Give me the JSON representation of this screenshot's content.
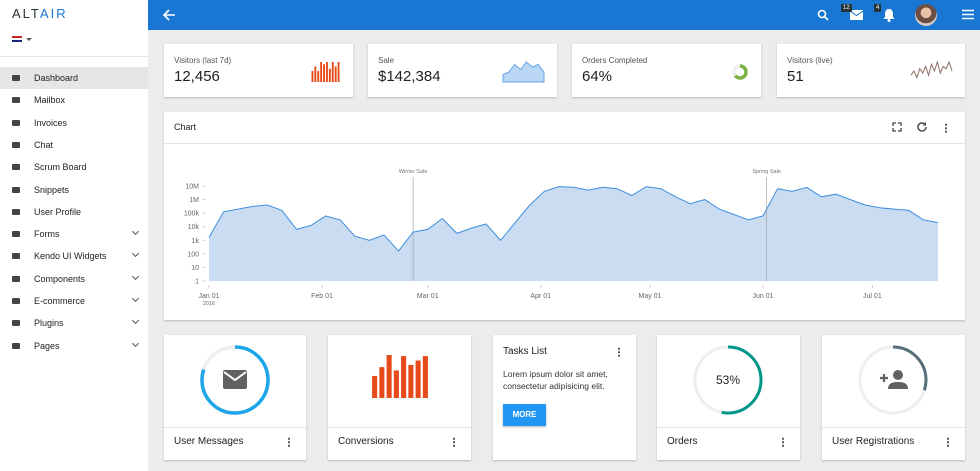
{
  "brand": {
    "part1": "ALT",
    "part2": "AIR"
  },
  "sidebar": {
    "items": [
      {
        "label": "Dashboard",
        "active": true
      },
      {
        "label": "Mailbox"
      },
      {
        "label": "Invoices"
      },
      {
        "label": "Chat"
      },
      {
        "label": "Scrum Board"
      },
      {
        "label": "Snippets"
      },
      {
        "label": "User Profile"
      },
      {
        "label": "Forms",
        "submenu": true
      },
      {
        "label": "Kendo UI Widgets",
        "submenu": true
      },
      {
        "label": "Components",
        "submenu": true
      },
      {
        "label": "E-commerce",
        "submenu": true
      },
      {
        "label": "Plugins",
        "submenu": true
      },
      {
        "label": "Pages",
        "submenu": true
      }
    ]
  },
  "header": {
    "mail_badge": "12",
    "notification_badge": "4"
  },
  "stats": [
    {
      "label": "Visitors (last 7d)",
      "value": "12,456",
      "spark": {
        "type": "bar",
        "color": "#e64a19",
        "values": [
          10,
          14,
          10,
          18,
          16,
          18,
          12,
          18,
          14,
          18
        ]
      }
    },
    {
      "label": "Sale",
      "value": "$142,384",
      "spark": {
        "type": "area",
        "color": "#64a6e8",
        "values": [
          3,
          4,
          7,
          5,
          8,
          6,
          7,
          4
        ]
      }
    },
    {
      "label": "Orders Completed",
      "value": "64%",
      "spark": {
        "type": "donut",
        "color": "#7cb342",
        "value": 64
      }
    },
    {
      "label": "Visitors (live)",
      "value": "51",
      "spark": {
        "type": "line",
        "color": "#8d6e63",
        "values": [
          3,
          5,
          2,
          6,
          4,
          7,
          3,
          8,
          5,
          9,
          4,
          7,
          6,
          9,
          5
        ]
      }
    }
  ],
  "main_chart": {
    "type": "area",
    "title": "Chart",
    "color": "#3f8fdc",
    "log_scale": true,
    "x": [
      "2016-01-01",
      "2016-01-05",
      "2016-01-09",
      "2016-01-13",
      "2016-01-17",
      "2016-01-21",
      "2016-01-25",
      "2016-01-29",
      "2016-02-02",
      "2016-02-06",
      "2016-02-10",
      "2016-02-14",
      "2016-02-18",
      "2016-02-22",
      "2016-02-26",
      "2016-03-01",
      "2016-03-05",
      "2016-03-09",
      "2016-03-13",
      "2016-03-17",
      "2016-03-21",
      "2016-03-25",
      "2016-03-29",
      "2016-04-02",
      "2016-04-06",
      "2016-04-10",
      "2016-04-14",
      "2016-04-18",
      "2016-04-22",
      "2016-04-26",
      "2016-04-30",
      "2016-05-04",
      "2016-05-08",
      "2016-05-12",
      "2016-05-16",
      "2016-05-20",
      "2016-05-24",
      "2016-05-28",
      "2016-06-01",
      "2016-06-05",
      "2016-06-09",
      "2016-06-13",
      "2016-06-17",
      "2016-06-21",
      "2016-06-25",
      "2016-06-29",
      "2016-07-03",
      "2016-07-07",
      "2016-07-11",
      "2016-07-15",
      "2016-07-19"
    ],
    "values": [
      1600,
      126000,
      200000,
      316000,
      398000,
      158000,
      6300,
      12600,
      63000,
      31600,
      2000,
      1000,
      2500,
      160,
      4000,
      6300,
      40000,
      3200,
      7900,
      15800,
      1000,
      20000,
      398000,
      4000000,
      9000000,
      8000000,
      5000000,
      8000000,
      6300000,
      2000000,
      9000000,
      6300000,
      1600000,
      500000,
      1000000,
      200000,
      79000,
      32000,
      63000,
      6300000,
      4000000,
      7900000,
      1600000,
      2500000,
      1000000,
      400000,
      250000,
      200000,
      160000,
      32000,
      20000
    ],
    "xlim": [
      "2016-01-01",
      "2016-07-19"
    ],
    "xticks": [
      {
        "value": "2016-01-01",
        "label": "Jan 01",
        "sublabel": "2016"
      },
      {
        "value": "2016-02-01",
        "label": "Feb 01"
      },
      {
        "value": "2016-03-01",
        "label": "Mar 01"
      },
      {
        "value": "2016-04-01",
        "label": "Apr 01"
      },
      {
        "value": "2016-05-01",
        "label": "May 01"
      },
      {
        "value": "2016-06-01",
        "label": "Jun 01"
      },
      {
        "value": "2016-07-01",
        "label": "Jul 01"
      }
    ],
    "ylim": [
      1,
      10000000
    ],
    "yticks": [
      1,
      10,
      100,
      {
        "value": 1000,
        "label": "1k"
      },
      {
        "value": 10000,
        "label": "10k"
      },
      {
        "value": 100000,
        "label": "100k"
      },
      {
        "value": 1000000,
        "label": "1M"
      },
      {
        "value": 10000000,
        "label": "10M"
      }
    ],
    "annotations": [
      {
        "x": "2016-02-26",
        "label": "Winter Sale"
      },
      {
        "x": "2016-06-02",
        "label": "Spring Sale"
      }
    ]
  },
  "widgets": [
    {
      "title": "User Messages",
      "chart": {
        "type": "ring",
        "color": "#1ea5e9",
        "value": 80
      }
    },
    {
      "title": "Conversions",
      "chart": {
        "type": "bar",
        "color": "#e64a19",
        "values": [
          20,
          28,
          39,
          25,
          38,
          30,
          34,
          38
        ]
      }
    },
    {
      "title": "Tasks List",
      "text": "Lorem ipsum dolor sit amet, consectetur adipisicing elit.",
      "button": "MORE"
    },
    {
      "title": "Orders",
      "chart": {
        "type": "ring",
        "color": "#009688",
        "value": 53,
        "value_label": "53%"
      }
    },
    {
      "title": "User Registrations",
      "chart": {
        "type": "ring",
        "color": "#546e7a",
        "value": 30
      }
    }
  ]
}
